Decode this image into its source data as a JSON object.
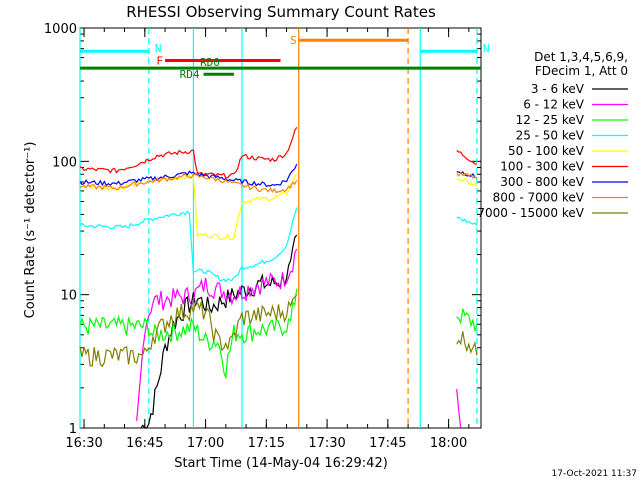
{
  "chart_data": {
    "type": "line",
    "title": "RHESSI Observing Summary Count Rates",
    "xlabel": "Start Time (14-May-04 16:29:42)",
    "ylabel": "Count Rate (s⁻¹ detector⁻¹)",
    "yscale": "log",
    "ylim": [
      1,
      1000
    ],
    "xlim": [
      "16:29",
      "18:08"
    ],
    "x_ticks": [
      "16:30",
      "16:45",
      "17:00",
      "17:15",
      "17:30",
      "17:45",
      "18:00"
    ],
    "y_ticks": [
      "1",
      "10",
      "100",
      "1000"
    ],
    "legend": {
      "placement": "right",
      "header": [
        "Det 1,3,4,5,6,9,",
        "FDecim 1, Att 0"
      ]
    },
    "series": [
      {
        "name": "3 - 6 keV",
        "color": "#000000",
        "x": [
          "16:44",
          "16:46",
          "16:48",
          "16:50",
          "16:52",
          "16:55",
          "16:58",
          "17:01",
          "17:04",
          "17:07",
          "17:10",
          "17:13",
          "17:16",
          "17:19",
          "17:21",
          "17:22.5",
          "18:02"
        ],
        "y": [
          1,
          1.1,
          2,
          4,
          6,
          8,
          9.5,
          8,
          9,
          10,
          11,
          12,
          12,
          13,
          16,
          28,
          1
        ]
      },
      {
        "name": "6 - 12 keV",
        "color": "#ff00ff",
        "x": [
          "16:43",
          "16:45",
          "16:47",
          "16:52",
          "16:57",
          "17:00",
          "17:03",
          "17:07",
          "17:10",
          "17:13",
          "17:16",
          "17:19",
          "17:21",
          "17:22.5",
          "18:02",
          "18:03"
        ],
        "y": [
          1,
          6,
          9,
          9.5,
          10,
          12,
          11,
          10,
          11,
          12,
          12.5,
          13,
          16,
          22,
          2,
          1
        ]
      },
      {
        "name": "12 - 25 keV",
        "color": "#00ff00",
        "x": [
          "16:29",
          "16:46",
          "16:47",
          "16:55",
          "16:57",
          "17:00",
          "17:03",
          "17:05",
          "17:07",
          "17:10",
          "17:13",
          "17:16",
          "17:19",
          "17:21",
          "17:22.5",
          "18:02",
          "18:05",
          "18:07"
        ],
        "y": [
          5.8,
          5.8,
          5,
          5.5,
          5.8,
          4.5,
          4.5,
          2.8,
          5.2,
          5.2,
          5.5,
          5.5,
          5.8,
          6.2,
          11,
          7.2,
          6.5,
          6
        ]
      },
      {
        "name": "25 - 50 keV",
        "color": "#00ffff",
        "x": [
          "16:29",
          "16:40",
          "16:44",
          "16:48",
          "16:52",
          "16:56",
          "16:57",
          "17:00",
          "17:04",
          "17:07",
          "17:09",
          "17:13",
          "17:17",
          "17:20",
          "17:22.5",
          "18:02",
          "18:05",
          "18:07"
        ],
        "y": [
          33,
          32,
          35,
          38,
          40,
          42,
          15,
          15,
          13,
          13,
          16,
          17,
          19,
          23,
          45,
          38,
          35,
          33
        ]
      },
      {
        "name": "50 - 100 keV",
        "color": "#ffff00",
        "x": [
          "16:29",
          "16:38",
          "16:43",
          "16:48",
          "16:52",
          "16:57",
          "16:58",
          "17:00",
          "17:04",
          "17:07",
          "17:09",
          "17:13",
          "17:17",
          "17:20",
          "17:22.5",
          "18:02",
          "18:05",
          "18:07"
        ],
        "y": [
          65,
          63,
          68,
          72,
          75,
          78,
          28,
          28,
          27,
          27,
          50,
          52,
          53,
          58,
          80,
          75,
          70,
          65
        ]
      },
      {
        "name": "100 - 300 keV",
        "color": "#ff0000",
        "x": [
          "16:29",
          "16:38",
          "16:43",
          "16:48",
          "16:52",
          "16:57",
          "16:58",
          "17:00",
          "17:04",
          "17:07",
          "17:09",
          "17:13",
          "17:17",
          "17:20",
          "17:22.5",
          "18:02",
          "18:05",
          "18:07"
        ],
        "y": [
          88,
          85,
          95,
          110,
          115,
          120,
          80,
          80,
          78,
          78,
          110,
          105,
          103,
          115,
          180,
          120,
          105,
          95
        ]
      },
      {
        "name": "300 - 800 keV",
        "color": "#0000ff",
        "x": [
          "16:29",
          "16:38",
          "16:43",
          "16:48",
          "16:52",
          "16:56",
          "17:00",
          "17:04",
          "17:07",
          "17:10",
          "17:13",
          "17:17",
          "17:20",
          "17:22.5",
          "18:02",
          "18:05",
          "18:07"
        ],
        "y": [
          70,
          68,
          72,
          75,
          78,
          82,
          78,
          75,
          72,
          70,
          68,
          66,
          72,
          95,
          85,
          80,
          75
        ]
      },
      {
        "name": "800 - 7000 keV",
        "color": "#ff8000",
        "x": [
          "16:29",
          "16:38",
          "16:43",
          "16:48",
          "16:52",
          "16:56",
          "17:00",
          "17:04",
          "17:07",
          "17:10",
          "17:13",
          "17:17",
          "17:20",
          "17:22.5",
          "18:02",
          "18:05",
          "18:07"
        ],
        "y": [
          65,
          63,
          68,
          72,
          75,
          78,
          76,
          72,
          68,
          65,
          62,
          60,
          62,
          72,
          80,
          78,
          75
        ]
      },
      {
        "name": "7000 - 15000 keV",
        "color": "#808000",
        "x": [
          "16:29",
          "16:45",
          "16:47",
          "16:52",
          "16:57",
          "17:00",
          "17:03",
          "17:06",
          "17:09",
          "17:13",
          "17:16",
          "17:19",
          "17:21",
          "17:22.5",
          "18:02",
          "18:05",
          "18:07"
        ],
        "y": [
          3.5,
          3.5,
          5,
          7,
          8,
          7.5,
          4.5,
          4.2,
          6.8,
          7,
          7.3,
          7.5,
          8,
          10,
          5,
          4.5,
          3.5
        ]
      }
    ],
    "annotations": [
      {
        "label": "N",
        "color": "#00ffff",
        "type": "bar",
        "x": [
          "16:29",
          "16:46"
        ],
        "y": 670
      },
      {
        "label": "N",
        "color": "#00ffff",
        "type": "bar",
        "x": [
          "17:53",
          "18:07"
        ],
        "y": 670
      },
      {
        "label": "F",
        "color": "#ff0000",
        "type": "bar",
        "x": [
          "16:50",
          "17:18.5"
        ],
        "y": 570
      },
      {
        "label": "S",
        "color": "#ff8000",
        "type": "bar",
        "x": [
          "17:23",
          "17:50"
        ],
        "y": 810
      },
      {
        "label": "RD0",
        "color": "#008000",
        "type": "bar",
        "x": [
          "16:29",
          "18:08"
        ],
        "y": 500
      },
      {
        "label": "RD4",
        "color": "#008000",
        "type": "bar",
        "x": [
          "16:59.5",
          "17:07"
        ],
        "y": 450
      }
    ],
    "vertical_lines": [
      {
        "x": "16:29",
        "color": "#00ffff",
        "style": "solid"
      },
      {
        "x": "16:46",
        "color": "#00ffff",
        "style": "dashed"
      },
      {
        "x": "17:23",
        "color": "#ff8000",
        "style": "solid"
      },
      {
        "x": "17:50",
        "color": "#ff8000",
        "style": "dashed"
      },
      {
        "x": "17:53",
        "color": "#00ffff",
        "style": "solid"
      },
      {
        "x": "18:07",
        "color": "#00ffff",
        "style": "dashed"
      },
      {
        "x": "16:57",
        "color": "#00ffff",
        "style": "solid"
      },
      {
        "x": "17:09",
        "color": "#00ffff",
        "style": "solid"
      }
    ],
    "footer_timestamp": "17-Oct-2021 11:37"
  }
}
